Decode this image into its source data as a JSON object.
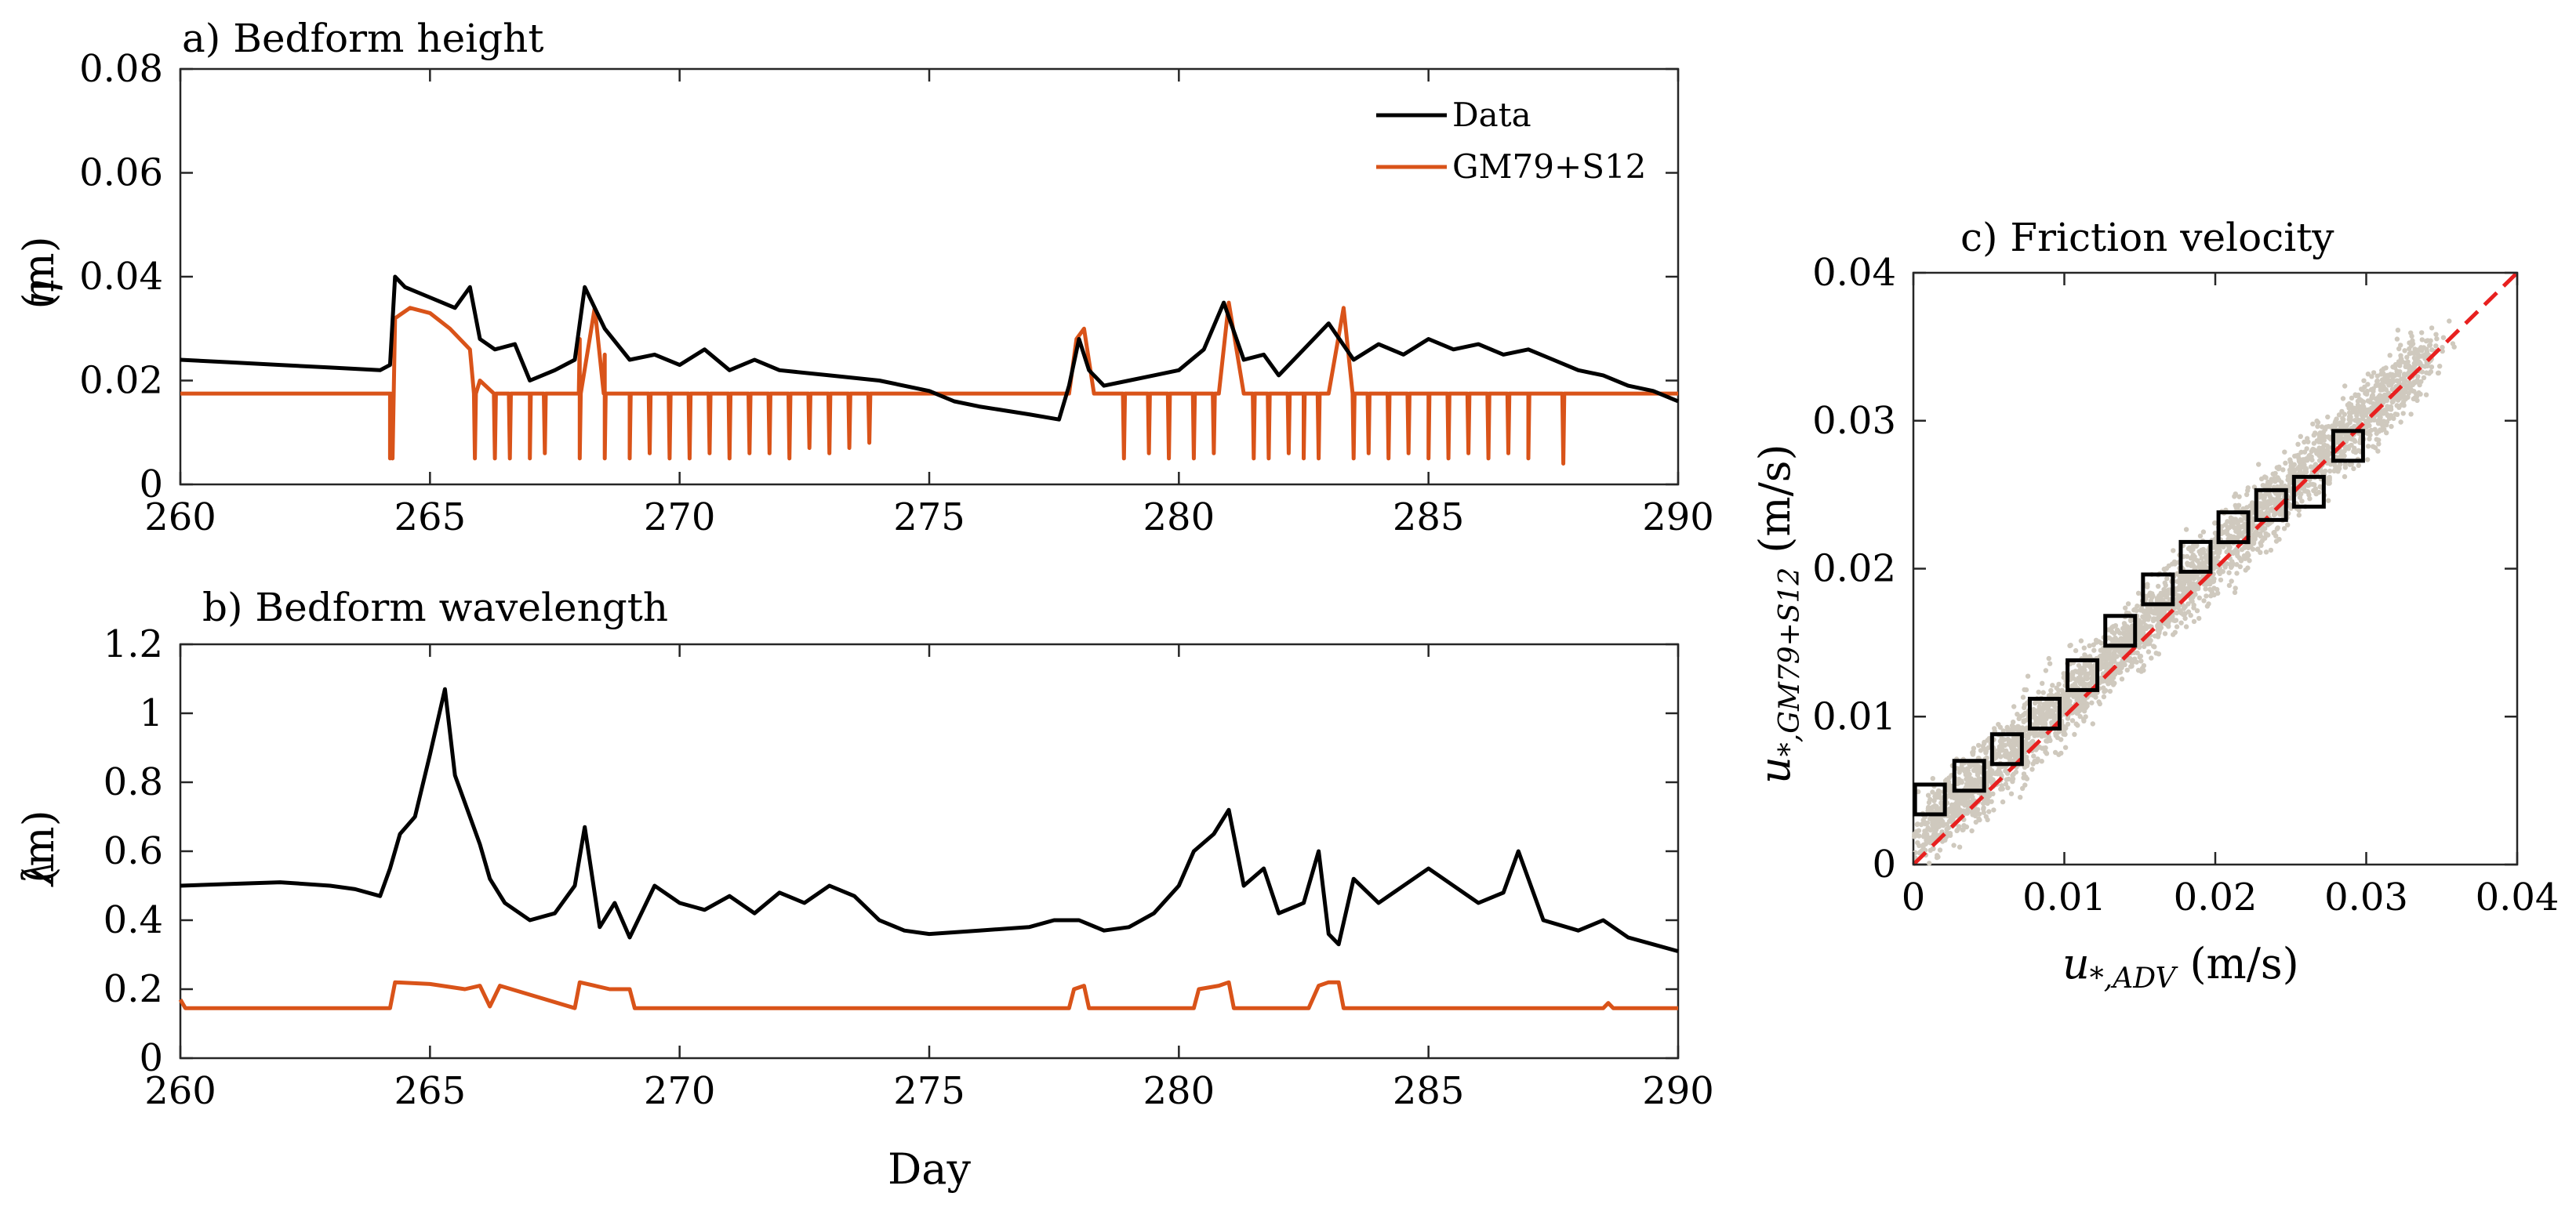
{
  "colors": {
    "data": "#000000",
    "model": "#d95319",
    "scatter": "#cfc9be",
    "one_to_one": "#e8201f",
    "axis": "#262626"
  },
  "chart_data": [
    {
      "id": "a",
      "type": "line",
      "title": "a) Bedform height",
      "xlabel": "",
      "ylabel_symbol": "η",
      "ylabel_unit": "(m)",
      "xlim": [
        260,
        290
      ],
      "ylim": [
        0,
        0.08
      ],
      "xticks": [
        260,
        265,
        270,
        275,
        280,
        285,
        290
      ],
      "yticks": [
        0,
        0.02,
        0.04,
        0.06,
        0.08
      ],
      "ytick_labels": [
        "0",
        "0.02",
        "0.04",
        "0.06",
        "0.08"
      ],
      "legend": {
        "position": "top-right",
        "entries": [
          "Data",
          "GM79+S12"
        ]
      },
      "series": [
        {
          "name": "Data",
          "x": [
            260,
            261,
            262,
            263,
            264,
            264.2,
            264.3,
            264.5,
            265,
            265.5,
            265.8,
            266,
            266.3,
            266.7,
            267,
            267.5,
            267.9,
            268.1,
            268.5,
            269,
            269.5,
            270,
            270.5,
            271,
            271.5,
            272,
            273,
            274,
            275,
            275.5,
            276,
            277,
            277.6,
            277.8,
            278,
            278.2,
            278.5,
            279,
            279.5,
            280,
            280.5,
            280.9,
            281.3,
            281.7,
            282,
            282.5,
            283,
            283.5,
            284,
            284.5,
            285,
            285.5,
            286,
            286.5,
            287,
            287.5,
            288,
            288.5,
            289,
            289.5,
            290
          ],
          "values": [
            0.024,
            0.0235,
            0.023,
            0.0225,
            0.022,
            0.023,
            0.04,
            0.038,
            0.036,
            0.034,
            0.038,
            0.028,
            0.026,
            0.027,
            0.02,
            0.022,
            0.024,
            0.038,
            0.03,
            0.024,
            0.025,
            0.023,
            0.026,
            0.022,
            0.024,
            0.022,
            0.021,
            0.02,
            0.018,
            0.016,
            0.015,
            0.0135,
            0.0125,
            0.019,
            0.028,
            0.022,
            0.019,
            0.02,
            0.021,
            0.022,
            0.026,
            0.035,
            0.024,
            0.025,
            0.021,
            0.026,
            0.031,
            0.024,
            0.027,
            0.025,
            0.028,
            0.026,
            0.027,
            0.025,
            0.026,
            0.024,
            0.022,
            0.021,
            0.019,
            0.018,
            0.016
          ]
        },
        {
          "name": "GM79+S12",
          "x": [
            260,
            264.2,
            264.25,
            264.3,
            264.6,
            265,
            265.4,
            265.8,
            266,
            266.5,
            267,
            267.5,
            268,
            268.3,
            268.5,
            269,
            270,
            272,
            274,
            276,
            277.8,
            277.95,
            278.1,
            278.3,
            279,
            280,
            280.8,
            281,
            281.3,
            282,
            282.5,
            283,
            283.3,
            284,
            285,
            286,
            287,
            288,
            289,
            290
          ],
          "values": [
            0.0175,
            0.0175,
            0.005,
            0.032,
            0.034,
            0.033,
            0.03,
            0.026,
            0.02,
            0.0175,
            0.0175,
            0.0175,
            0.028,
            0.034,
            0.025,
            0.0175,
            0.0175,
            0.0175,
            0.0175,
            0.0175,
            0.0175,
            0.028,
            0.03,
            0.0175,
            0.0175,
            0.0175,
            0.0175,
            0.035,
            0.0175,
            0.0175,
            0.0175,
            0.0175,
            0.034,
            0.0175,
            0.0175,
            0.0175,
            0.0175,
            0.0175,
            0.0175,
            0.0175
          ]
        }
      ],
      "model_dips_x": [
        264.2,
        265.9,
        266.3,
        266.6,
        267.0,
        267.3,
        268.0,
        268.5,
        269.0,
        269.4,
        269.8,
        270.2,
        270.6,
        271.0,
        271.4,
        271.8,
        272.2,
        272.6,
        273.0,
        273.4,
        273.8,
        278.9,
        279.4,
        279.8,
        280.3,
        280.7,
        281.5,
        281.8,
        282.2,
        282.5,
        282.8,
        283.5,
        283.8,
        284.2,
        284.6,
        285.0,
        285.4,
        285.8,
        286.2,
        286.6,
        287.0,
        287.7
      ],
      "model_dip_values": [
        0.005,
        0.005,
        0.005,
        0.005,
        0.005,
        0.006,
        0.005,
        0.005,
        0.005,
        0.006,
        0.005,
        0.005,
        0.006,
        0.005,
        0.006,
        0.006,
        0.005,
        0.007,
        0.006,
        0.007,
        0.008,
        0.005,
        0.006,
        0.005,
        0.005,
        0.006,
        0.005,
        0.005,
        0.006,
        0.005,
        0.005,
        0.005,
        0.006,
        0.005,
        0.006,
        0.005,
        0.005,
        0.006,
        0.005,
        0.006,
        0.005,
        0.004
      ]
    },
    {
      "id": "b",
      "type": "line",
      "title": "b) Bedform wavelength",
      "xlabel": "Day",
      "ylabel_symbol": "λ",
      "ylabel_unit": "(m)",
      "xlim": [
        260,
        290
      ],
      "ylim": [
        0,
        1.2
      ],
      "xticks": [
        260,
        265,
        270,
        275,
        280,
        285,
        290
      ],
      "yticks": [
        0,
        0.2,
        0.4,
        0.6,
        0.8,
        1,
        1.2
      ],
      "ytick_labels": [
        "0",
        "0.2",
        "0.4",
        "0.6",
        "0.8",
        "1",
        "1.2"
      ],
      "series": [
        {
          "name": "Data",
          "x": [
            260,
            261,
            262,
            263,
            263.5,
            264,
            264.2,
            264.4,
            264.7,
            265,
            265.3,
            265.5,
            265.8,
            266,
            266.2,
            266.5,
            267,
            267.5,
            267.9,
            268.1,
            268.4,
            268.7,
            269,
            269.5,
            270,
            270.5,
            271,
            271.5,
            272,
            272.5,
            273,
            273.5,
            274,
            274.5,
            275,
            276,
            277,
            277.5,
            278,
            278.5,
            279,
            279.5,
            280,
            280.3,
            280.7,
            281,
            281.3,
            281.7,
            282,
            282.5,
            282.8,
            283,
            283.2,
            283.5,
            284,
            284.5,
            285,
            285.5,
            286,
            286.5,
            286.8,
            287,
            287.3,
            288,
            288.5,
            289,
            289.5,
            290
          ],
          "values": [
            0.5,
            0.505,
            0.51,
            0.5,
            0.49,
            0.47,
            0.55,
            0.65,
            0.7,
            0.88,
            1.07,
            0.82,
            0.7,
            0.62,
            0.52,
            0.45,
            0.4,
            0.42,
            0.5,
            0.67,
            0.38,
            0.45,
            0.35,
            0.5,
            0.45,
            0.43,
            0.47,
            0.42,
            0.48,
            0.45,
            0.5,
            0.47,
            0.4,
            0.37,
            0.36,
            0.37,
            0.38,
            0.4,
            0.4,
            0.37,
            0.38,
            0.42,
            0.5,
            0.6,
            0.65,
            0.72,
            0.5,
            0.55,
            0.42,
            0.45,
            0.6,
            0.36,
            0.33,
            0.52,
            0.45,
            0.5,
            0.55,
            0.5,
            0.45,
            0.48,
            0.6,
            0.52,
            0.4,
            0.37,
            0.4,
            0.35,
            0.33,
            0.31
          ]
        },
        {
          "name": "GM79+S12",
          "x": [
            260,
            260.1,
            264.2,
            264.3,
            265,
            265.7,
            266,
            266.2,
            266.4,
            267.9,
            268,
            268.3,
            268.6,
            269,
            269.1,
            277.8,
            277.9,
            278.1,
            278.2,
            280.3,
            280.4,
            280.8,
            281,
            281.1,
            282.6,
            282.8,
            283,
            283.2,
            283.3,
            288.5,
            288.6,
            288.7,
            290
          ],
          "values": [
            0.17,
            0.145,
            0.145,
            0.22,
            0.215,
            0.2,
            0.21,
            0.15,
            0.21,
            0.145,
            0.22,
            0.21,
            0.2,
            0.2,
            0.145,
            0.145,
            0.2,
            0.21,
            0.145,
            0.145,
            0.2,
            0.21,
            0.22,
            0.145,
            0.145,
            0.21,
            0.22,
            0.22,
            0.145,
            0.145,
            0.16,
            0.145,
            0.145
          ]
        }
      ]
    },
    {
      "id": "c",
      "type": "scatter",
      "title": "c) Friction velocity",
      "xlabel_symbol": "u",
      "xlabel_subscript": "*,ADV",
      "xlabel_unit": "(m/s)",
      "ylabel_symbol": "u",
      "ylabel_subscript": "*,GM79+S12",
      "ylabel_unit": "(m/s)",
      "xlim": [
        0,
        0.04
      ],
      "ylim": [
        0,
        0.04
      ],
      "xticks": [
        0,
        0.01,
        0.02,
        0.03,
        0.04
      ],
      "yticks": [
        0,
        0.01,
        0.02,
        0.03,
        0.04
      ],
      "tick_labels": [
        "0",
        "0.01",
        "0.02",
        "0.03",
        "0.04"
      ],
      "one_to_one_line": [
        [
          0,
          0
        ],
        [
          0.04,
          0.04
        ]
      ],
      "scatter_cloud": {
        "count": 3200,
        "x_range": [
          0.0005,
          0.037
        ],
        "slope": 1.0,
        "intercept": 0.0015,
        "spread": 0.0032
      },
      "bin_means": {
        "x": [
          0.0011,
          0.0037,
          0.0062,
          0.0087,
          0.0112,
          0.0137,
          0.0162,
          0.0187,
          0.0212,
          0.0237,
          0.0262,
          0.0288
        ],
        "y": [
          0.0044,
          0.006,
          0.0078,
          0.0102,
          0.0128,
          0.0158,
          0.0186,
          0.0208,
          0.0228,
          0.0243,
          0.0252,
          0.0283
        ]
      }
    }
  ]
}
